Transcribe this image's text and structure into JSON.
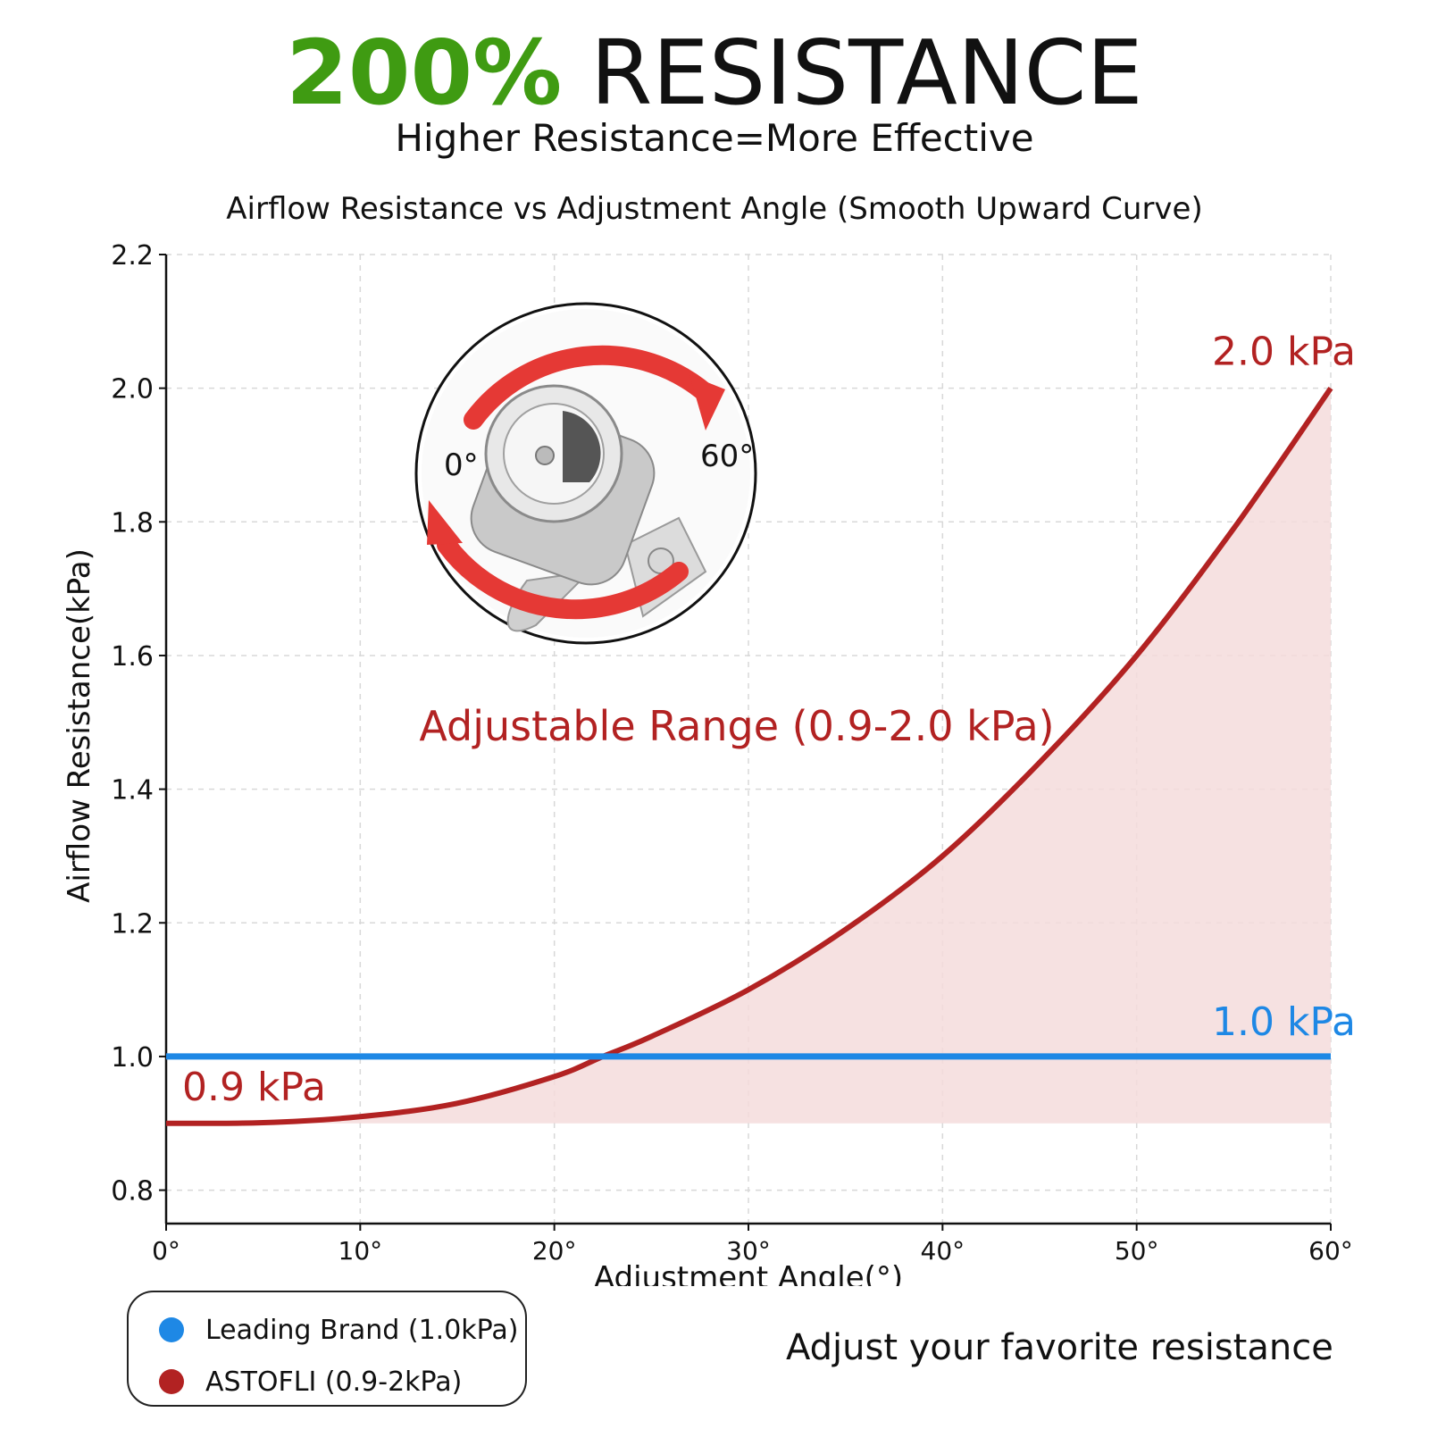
{
  "header": {
    "highlight": "200%",
    "title_rest": "RESISTANCE",
    "subtitle": "Higher Resistance=More Effective"
  },
  "colors": {
    "highlight": "#3f9b12",
    "curve": "#b22222",
    "curve_fill": "#f4dcdc",
    "baseline": "#1e88e5"
  },
  "chart_data": {
    "type": "line",
    "title": "Airflow Resistance vs Adjustment Angle (Smooth Upward Curve)",
    "xlabel": "Adjustment Angle(°)",
    "ylabel": "Airflow Resistance(kPa)",
    "xlim": [
      0,
      60
    ],
    "ylim": [
      0.75,
      2.2
    ],
    "x_ticks": [
      "0°",
      "10°",
      "20°",
      "30°",
      "40°",
      "50°",
      "60°"
    ],
    "y_ticks": [
      "0.8",
      "1.0",
      "1.2",
      "1.4",
      "1.6",
      "1.8",
      "2.0",
      "2.2"
    ],
    "grid": true,
    "series": [
      {
        "name": "Leading Brand (1.0kPa)",
        "x": [
          0,
          60
        ],
        "y": [
          1.0,
          1.0
        ]
      },
      {
        "name": "ASTOFLI (0.9-2kPa)",
        "x": [
          0,
          5,
          10,
          15,
          20,
          22.5,
          25,
          30,
          35,
          40,
          45,
          50,
          55,
          60
        ],
        "y": [
          0.9,
          0.901,
          0.91,
          0.93,
          0.97,
          1.0,
          1.03,
          1.1,
          1.19,
          1.3,
          1.44,
          1.6,
          1.79,
          2.0
        ]
      }
    ],
    "annotations": {
      "max_label": "2.0 kPa",
      "baseline_label": "1.0 kPa",
      "min_label": "0.9 kPa",
      "range_label": "Adjustable Range (0.9-2.0 kPa)",
      "inset_start_label": "0°",
      "inset_end_label": "60°"
    },
    "legend": {
      "placement": "bottom-left",
      "items": [
        "Leading Brand (1.0kPa)",
        "ASTOFLI (0.9-2kPa)"
      ]
    }
  },
  "footer": {
    "tagline": "Adjust your favorite resistance"
  }
}
